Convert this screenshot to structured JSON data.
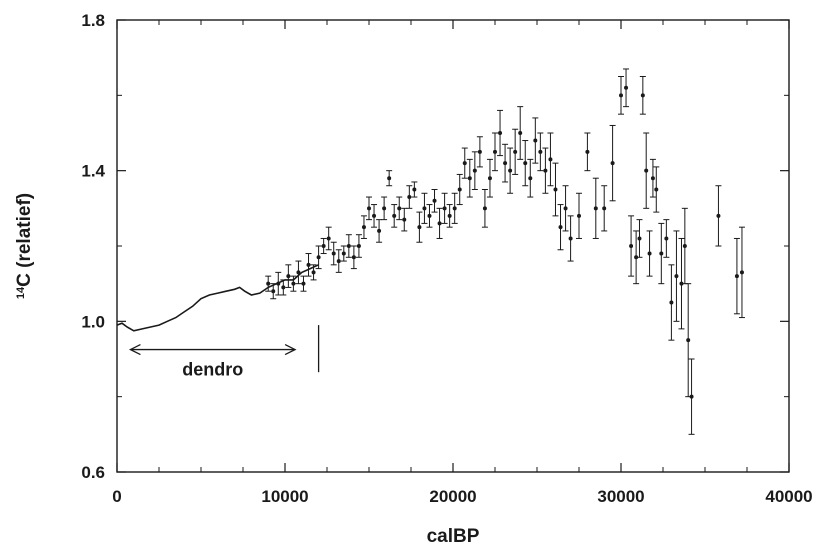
{
  "chart_data": {
    "type": "scatter",
    "xlabel": "calBP",
    "ylabel": "C (relatief)",
    "ylabel_superscript": "14",
    "xlim": [
      0,
      40000
    ],
    "ylim": [
      0.6,
      1.8
    ],
    "x_ticks": [
      "0",
      "10000",
      "20000",
      "30000",
      "40000"
    ],
    "y_ticks": [
      "0.6",
      "1.0",
      "1.4",
      "1.8"
    ],
    "grid": false,
    "legend": "none",
    "annotations": {
      "range_label": "dendro",
      "range_x": [
        800,
        10600
      ],
      "range_y": 0.925,
      "marker_x": 12000,
      "marker_y": [
        0.865,
        0.99
      ]
    },
    "dendro_curve": {
      "x": [
        0,
        300,
        600,
        1000,
        1500,
        2000,
        2500,
        3000,
        3500,
        4000,
        4500,
        5000,
        5500,
        6000,
        6500,
        7000,
        7300,
        7600,
        8000,
        8500,
        9000,
        9500,
        10000,
        10500,
        11000,
        11500,
        12000
      ],
      "y": [
        0.99,
        0.995,
        0.985,
        0.975,
        0.98,
        0.985,
        0.99,
        1.0,
        1.01,
        1.025,
        1.04,
        1.06,
        1.07,
        1.075,
        1.08,
        1.085,
        1.09,
        1.08,
        1.07,
        1.075,
        1.09,
        1.1,
        1.11,
        1.11,
        1.13,
        1.14,
        1.15
      ]
    },
    "series": [
      {
        "x": [
          9000,
          9300,
          9600,
          9900,
          10200,
          10500,
          10800,
          11100,
          11400,
          11700,
          12000,
          12300,
          12600,
          12900,
          13200,
          13500,
          13800,
          14100,
          14400,
          14700,
          15000,
          15300,
          15600,
          15900,
          16200,
          16500,
          16800,
          17100,
          17400,
          17700,
          18000,
          18300,
          18600,
          18900,
          19200,
          19500,
          19800,
          20100,
          20400,
          20700,
          21000,
          21300,
          21600,
          21900,
          22200,
          22500,
          22800,
          23100,
          23400,
          23700,
          24000,
          24300,
          24600,
          24900,
          25200,
          25500,
          25800,
          26100,
          26400,
          26700,
          27000,
          27500,
          28000,
          28500,
          29000,
          29500,
          30000,
          30300,
          30600,
          30900,
          31100,
          31300,
          31500,
          31700,
          31900,
          32100,
          32400,
          32700,
          33000,
          33300,
          33600,
          33800,
          34000,
          34200,
          35800,
          36900,
          37200
        ],
        "y": [
          1.1,
          1.08,
          1.1,
          1.09,
          1.12,
          1.1,
          1.13,
          1.1,
          1.15,
          1.13,
          1.17,
          1.2,
          1.22,
          1.18,
          1.16,
          1.18,
          1.2,
          1.17,
          1.2,
          1.25,
          1.3,
          1.28,
          1.24,
          1.3,
          1.38,
          1.28,
          1.3,
          1.27,
          1.33,
          1.35,
          1.25,
          1.3,
          1.28,
          1.32,
          1.26,
          1.3,
          1.28,
          1.3,
          1.35,
          1.42,
          1.38,
          1.4,
          1.45,
          1.3,
          1.38,
          1.45,
          1.5,
          1.42,
          1.4,
          1.45,
          1.5,
          1.42,
          1.38,
          1.48,
          1.45,
          1.4,
          1.43,
          1.35,
          1.25,
          1.3,
          1.22,
          1.28,
          1.45,
          1.3,
          1.3,
          1.42,
          1.6,
          1.62,
          1.2,
          1.17,
          1.22,
          1.6,
          1.4,
          1.18,
          1.38,
          1.35,
          1.18,
          1.22,
          1.05,
          1.12,
          1.1,
          1.2,
          0.95,
          0.8,
          1.28,
          1.12,
          1.13
        ],
        "err": [
          0.02,
          0.02,
          0.03,
          0.02,
          0.03,
          0.02,
          0.03,
          0.02,
          0.03,
          0.02,
          0.03,
          0.02,
          0.03,
          0.03,
          0.03,
          0.02,
          0.03,
          0.03,
          0.03,
          0.03,
          0.03,
          0.03,
          0.03,
          0.03,
          0.02,
          0.03,
          0.03,
          0.03,
          0.03,
          0.02,
          0.04,
          0.04,
          0.03,
          0.03,
          0.04,
          0.04,
          0.03,
          0.04,
          0.04,
          0.04,
          0.05,
          0.05,
          0.04,
          0.05,
          0.05,
          0.05,
          0.06,
          0.05,
          0.06,
          0.06,
          0.07,
          0.06,
          0.05,
          0.06,
          0.05,
          0.06,
          0.07,
          0.07,
          0.06,
          0.06,
          0.06,
          0.06,
          0.05,
          0.08,
          0.06,
          0.1,
          0.05,
          0.05,
          0.08,
          0.07,
          0.05,
          0.05,
          0.1,
          0.06,
          0.05,
          0.06,
          0.08,
          0.05,
          0.1,
          0.12,
          0.12,
          0.1,
          0.15,
          0.1,
          0.08,
          0.1,
          0.12
        ]
      }
    ]
  }
}
